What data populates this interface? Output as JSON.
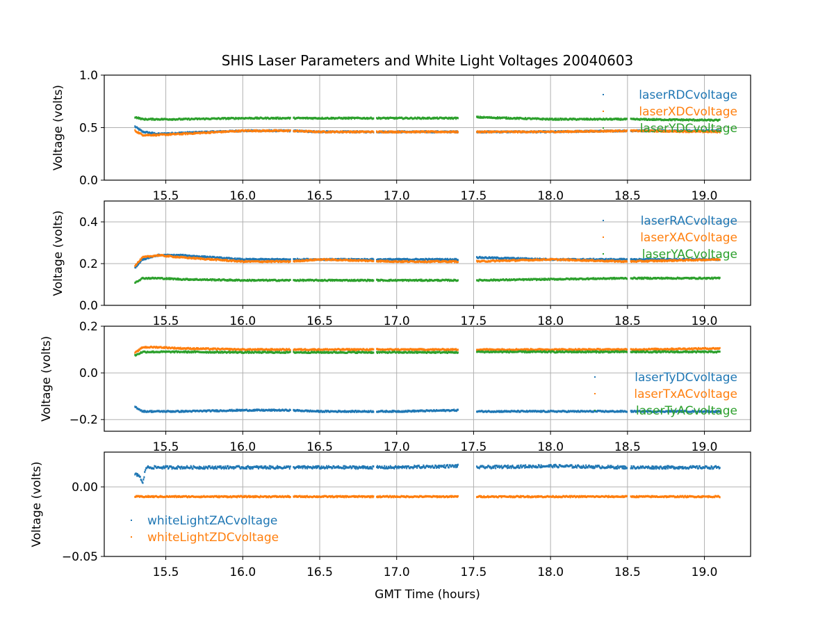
{
  "figure": {
    "title": "SHIS Laser Parameters and White Light Voltages 20040603"
  },
  "chart_data": [
    {
      "type": "scatter",
      "xlim": [
        15.1,
        19.3
      ],
      "ylim": [
        0.0,
        1.0
      ],
      "yticks": [
        "0.0",
        "0.5",
        "1.0"
      ],
      "xticks": [
        "15.5",
        "16.0",
        "16.5",
        "17.0",
        "17.5",
        "18.0",
        "18.5",
        "19.0"
      ],
      "xlabel": "",
      "ylabel": "Voltage (volts)",
      "grid": true,
      "legend_position": "right",
      "series": [
        {
          "name": "laserRDCvoltage",
          "color": "#1f77b4",
          "x": [
            15.3,
            15.35,
            15.45,
            15.6,
            16.0,
            16.3,
            16.5,
            17.0,
            17.4,
            17.5,
            18.0,
            18.5,
            19.1
          ],
          "y": [
            0.51,
            0.46,
            0.44,
            0.45,
            0.47,
            0.47,
            0.46,
            0.46,
            0.46,
            0.46,
            0.46,
            0.47,
            0.47
          ]
        },
        {
          "name": "laserXDCvoltage",
          "color": "#ff7f0e",
          "x": [
            15.3,
            15.35,
            15.45,
            15.6,
            16.0,
            16.3,
            16.5,
            17.0,
            17.4,
            17.5,
            18.0,
            18.5,
            19.1
          ],
          "y": [
            0.47,
            0.43,
            0.43,
            0.44,
            0.47,
            0.47,
            0.46,
            0.46,
            0.46,
            0.46,
            0.46,
            0.47,
            0.46
          ]
        },
        {
          "name": "laserYDCvoltage",
          "color": "#2ca02c",
          "x": [
            15.3,
            15.35,
            15.45,
            15.6,
            16.0,
            16.3,
            16.5,
            17.0,
            17.4,
            17.5,
            18.0,
            18.5,
            19.1
          ],
          "y": [
            0.6,
            0.58,
            0.58,
            0.58,
            0.59,
            0.59,
            0.59,
            0.59,
            0.59,
            0.6,
            0.58,
            0.58,
            0.57
          ]
        }
      ]
    },
    {
      "type": "scatter",
      "xlim": [
        15.1,
        19.3
      ],
      "ylim": [
        0.0,
        0.5
      ],
      "yticks": [
        "0.0",
        "0.2",
        "0.4"
      ],
      "xticks": [
        "15.5",
        "16.0",
        "16.5",
        "17.0",
        "17.5",
        "18.0",
        "18.5",
        "19.0"
      ],
      "xlabel": "",
      "ylabel": "Voltage (volts)",
      "grid": true,
      "legend_position": "right",
      "series": [
        {
          "name": "laserRACvoltage",
          "color": "#1f77b4",
          "x": [
            15.3,
            15.35,
            15.45,
            15.6,
            16.0,
            16.3,
            16.5,
            17.0,
            17.4,
            17.5,
            18.0,
            18.5,
            19.1
          ],
          "y": [
            0.18,
            0.22,
            0.24,
            0.24,
            0.22,
            0.22,
            0.22,
            0.22,
            0.22,
            0.23,
            0.22,
            0.22,
            0.22
          ]
        },
        {
          "name": "laserXACvoltage",
          "color": "#ff7f0e",
          "x": [
            15.3,
            15.35,
            15.45,
            15.6,
            16.0,
            16.3,
            16.5,
            17.0,
            17.4,
            17.5,
            18.0,
            18.5,
            19.1
          ],
          "y": [
            0.19,
            0.23,
            0.24,
            0.23,
            0.21,
            0.21,
            0.22,
            0.21,
            0.21,
            0.21,
            0.22,
            0.21,
            0.22
          ]
        },
        {
          "name": "laserYACvoltage",
          "color": "#2ca02c",
          "x": [
            15.3,
            15.35,
            15.45,
            15.6,
            16.0,
            16.3,
            16.5,
            17.0,
            17.4,
            17.5,
            18.0,
            18.5,
            19.1
          ],
          "y": [
            0.11,
            0.13,
            0.13,
            0.125,
            0.12,
            0.12,
            0.12,
            0.12,
            0.12,
            0.12,
            0.125,
            0.13,
            0.13
          ]
        }
      ]
    },
    {
      "type": "scatter",
      "xlim": [
        15.1,
        19.3
      ],
      "ylim": [
        -0.25,
        0.2
      ],
      "yticks": [
        "−0.2",
        "0.0",
        "0.2"
      ],
      "xticks": [
        "15.5",
        "16.0",
        "16.5",
        "17.0",
        "17.5",
        "18.0",
        "18.5",
        "19.0"
      ],
      "xlabel": "",
      "ylabel": "Voltage (volts)",
      "grid": true,
      "legend_position": "right",
      "series": [
        {
          "name": "laserTyDCvoltage",
          "color": "#1f77b4",
          "x": [
            15.3,
            15.35,
            15.45,
            15.6,
            16.0,
            16.3,
            16.5,
            17.0,
            17.4,
            17.5,
            18.0,
            18.5,
            19.1
          ],
          "y": [
            -0.145,
            -0.165,
            -0.165,
            -0.165,
            -0.16,
            -0.16,
            -0.165,
            -0.165,
            -0.16,
            -0.165,
            -0.165,
            -0.165,
            -0.165
          ]
        },
        {
          "name": "laserTxACvoltage",
          "color": "#ff7f0e",
          "x": [
            15.3,
            15.35,
            15.45,
            15.6,
            16.0,
            16.3,
            16.5,
            17.0,
            17.4,
            17.5,
            18.0,
            18.5,
            19.1
          ],
          "y": [
            0.085,
            0.11,
            0.11,
            0.105,
            0.1,
            0.1,
            0.1,
            0.1,
            0.1,
            0.1,
            0.1,
            0.1,
            0.105
          ]
        },
        {
          "name": "laserTyACvoltage",
          "color": "#2ca02c",
          "x": [
            15.3,
            15.35,
            15.45,
            15.6,
            16.0,
            16.3,
            16.5,
            17.0,
            17.4,
            17.5,
            18.0,
            18.5,
            19.1
          ],
          "y": [
            0.075,
            0.09,
            0.09,
            0.09,
            0.088,
            0.088,
            0.088,
            0.088,
            0.088,
            0.09,
            0.09,
            0.09,
            0.09
          ]
        }
      ]
    },
    {
      "type": "scatter",
      "xlim": [
        15.1,
        19.3
      ],
      "ylim": [
        -0.05,
        0.025
      ],
      "yticks": [
        "−0.05",
        "0.00"
      ],
      "xticks": [
        "15.5",
        "16.0",
        "16.5",
        "17.0",
        "17.5",
        "18.0",
        "18.5",
        "19.0"
      ],
      "xlabel": "GMT Time (hours)",
      "ylabel": "Voltage (volts)",
      "grid": true,
      "legend_position": "left",
      "series": [
        {
          "name": "whiteLightZACvoltage",
          "color": "#1f77b4",
          "x": [
            15.3,
            15.33,
            15.35,
            15.37,
            15.45,
            16.0,
            16.3,
            16.5,
            17.0,
            17.4,
            17.5,
            18.0,
            18.5,
            19.1
          ],
          "y": [
            0.009,
            0.008,
            0.002,
            0.014,
            0.014,
            0.014,
            0.014,
            0.014,
            0.014,
            0.015,
            0.014,
            0.015,
            0.014,
            0.014
          ]
        },
        {
          "name": "whiteLightZDCvoltage",
          "color": "#ff7f0e",
          "x": [
            15.3,
            15.35,
            15.45,
            16.0,
            16.3,
            16.5,
            17.0,
            17.4,
            17.5,
            18.0,
            18.5,
            19.1
          ],
          "y": [
            -0.007,
            -0.007,
            -0.007,
            -0.007,
            -0.007,
            -0.007,
            -0.007,
            -0.007,
            -0.007,
            -0.007,
            -0.007,
            -0.007
          ]
        }
      ]
    }
  ]
}
